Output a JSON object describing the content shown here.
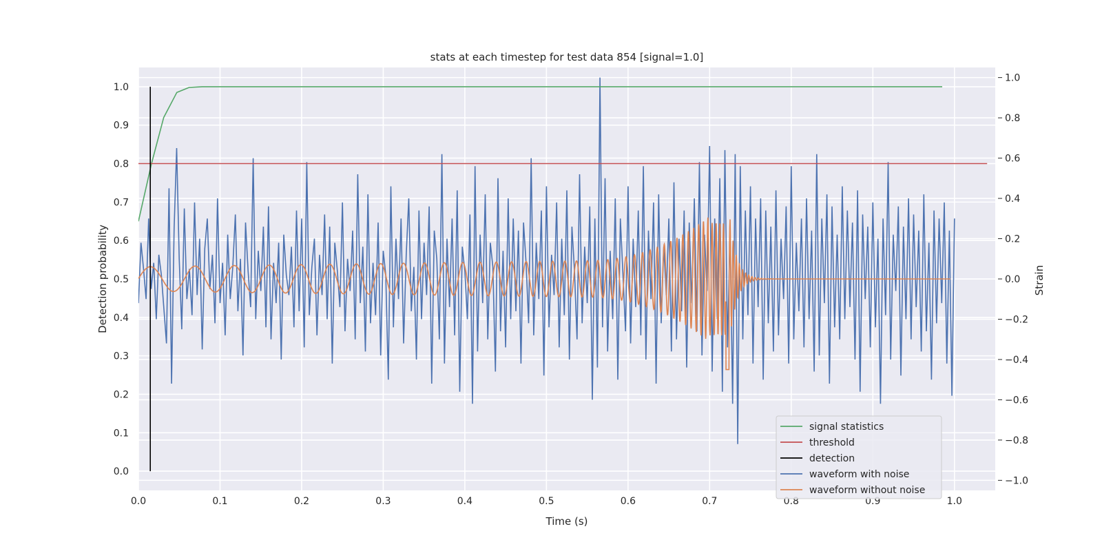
{
  "chart_data": {
    "type": "line",
    "title": "stats at each timestep for test data 854 [signal=1.0]",
    "xlabel": "Time (s)",
    "ylabel_left": "Detection probability",
    "ylabel_right": "Strain",
    "xlim": [
      0.0,
      1.05
    ],
    "ylim_left": [
      -0.05,
      1.05
    ],
    "ylim_right": [
      -1.05,
      1.05
    ],
    "x_ticks": [
      "0.0",
      "0.1",
      "0.2",
      "0.3",
      "0.4",
      "0.5",
      "0.6",
      "0.7",
      "0.8",
      "0.9",
      "1.0"
    ],
    "y_left_ticks": [
      "0.0",
      "0.1",
      "0.2",
      "0.3",
      "0.4",
      "0.5",
      "0.6",
      "0.7",
      "0.8",
      "0.9",
      "1.0"
    ],
    "y_right_ticks": [
      "−1.0",
      "−0.8",
      "−0.6",
      "−0.4",
      "−0.2",
      "0.0",
      "0.2",
      "0.4",
      "0.6",
      "0.8",
      "1.0"
    ],
    "grid": true,
    "legend_position": "lower-right",
    "series": [
      {
        "name": "signal statistics",
        "axis": "left",
        "color": "#55a868",
        "x": [
          0.0,
          0.016,
          0.031,
          0.047,
          0.062,
          0.078,
          0.1,
          0.2,
          0.3,
          0.4,
          0.5,
          0.6,
          0.7,
          0.8,
          0.9,
          0.985
        ],
        "y": [
          0.65,
          0.8,
          0.92,
          0.985,
          0.998,
          1.0,
          1.0,
          1.0,
          1.0,
          1.0,
          1.0,
          1.0,
          1.0,
          1.0,
          1.0,
          1.0
        ]
      },
      {
        "name": "threshold",
        "axis": "left",
        "color": "#c44e52",
        "x": [
          0.0,
          1.04
        ],
        "y": [
          0.8,
          0.8
        ]
      },
      {
        "name": "detection",
        "axis": "left",
        "color": "#000000",
        "x": [
          0.0145,
          0.0145
        ],
        "y": [
          0.0,
          1.0
        ]
      },
      {
        "name": "waveform with noise",
        "axis": "right",
        "color": "#4c72b0",
        "x_start": 0.0,
        "x_end": 1.0,
        "y": [
          -0.12,
          0.18,
          0.05,
          -0.1,
          0.3,
          -0.05,
          0.08,
          -0.2,
          0.12,
          0.02,
          -0.15,
          -0.32,
          0.45,
          -0.52,
          0.25,
          0.65,
          0.1,
          -0.25,
          0.35,
          -0.1,
          0.05,
          -0.18,
          0.38,
          -0.08,
          0.2,
          -0.35,
          0.15,
          0.3,
          -0.05,
          0.12,
          -0.22,
          0.4,
          -0.12,
          0.08,
          -0.28,
          0.22,
          -0.1,
          0.06,
          0.32,
          -0.16,
          0.1,
          -0.38,
          0.28,
          0.04,
          -0.14,
          0.6,
          -0.2,
          0.14,
          -0.06,
          0.26,
          -0.24,
          0.36,
          -0.3,
          0.08,
          -0.12,
          0.18,
          -0.4,
          0.22,
          0.02,
          -0.08,
          0.16,
          -0.24,
          0.34,
          -0.16,
          0.3,
          -0.34,
          0.58,
          -0.18,
          0.06,
          0.2,
          -0.28,
          0.12,
          -0.08,
          0.32,
          -0.2,
          0.26,
          -0.42,
          0.18,
          0.04,
          -0.14,
          0.38,
          -0.26,
          0.1,
          -0.06,
          0.24,
          -0.3,
          0.52,
          -0.12,
          0.16,
          -0.36,
          0.42,
          -0.22,
          0.08,
          -0.18,
          0.28,
          -0.38,
          0.14,
          0.02,
          -0.5,
          0.46,
          -0.24,
          0.2,
          -0.1,
          0.3,
          -0.32,
          0.12,
          0.4,
          -0.16,
          0.06,
          -0.4,
          0.34,
          -0.2,
          0.18,
          -0.08,
          0.36,
          -0.52,
          0.24,
          0.1,
          -0.3,
          0.62,
          -0.42,
          0.2,
          -0.14,
          0.3,
          -0.28,
          0.44,
          -0.56,
          0.16,
          0.04,
          -0.2,
          0.32,
          -0.62,
          0.56,
          -0.36,
          0.22,
          -0.12,
          0.42,
          -0.3,
          0.18,
          0.06,
          -0.46,
          0.5,
          -0.26,
          0.14,
          -0.34,
          0.4,
          -0.2,
          0.3,
          -0.16,
          0.24,
          -0.42,
          0.28,
          0.08,
          -0.22,
          0.6,
          -0.28,
          0.18,
          -0.1,
          0.34,
          -0.48,
          0.46,
          -0.24,
          0.12,
          -0.08,
          0.38,
          -0.34,
          0.2,
          -0.18,
          0.44,
          -0.4,
          0.26,
          0.04,
          -0.3,
          0.52,
          -0.22,
          0.16,
          -0.12,
          0.36,
          -0.6,
          0.3,
          -0.44,
          1.0,
          -0.24,
          0.5,
          -0.36,
          0.14,
          -0.2,
          0.4,
          -0.5,
          0.3,
          0.02,
          -0.26,
          0.46,
          -0.32,
          0.2,
          -0.14,
          0.34,
          -0.28,
          0.56,
          -0.4,
          0.24,
          -0.1,
          0.38,
          -0.52,
          0.42,
          -0.22,
          0.16,
          -0.08,
          0.3,
          -0.36,
          0.48,
          -0.3,
          0.2,
          -0.16,
          0.34,
          -0.44,
          0.28,
          -0.12,
          0.4,
          -0.26,
          0.58,
          -0.38,
          0.22,
          -0.06,
          0.66,
          -0.46,
          0.3,
          -0.2,
          0.5,
          -0.56,
          0.64,
          -0.34,
          0.24,
          -0.62,
          0.62,
          -0.82,
          0.56,
          -0.3,
          0.34,
          -0.18,
          0.46,
          -0.42,
          0.3,
          -0.14,
          0.4,
          -0.5,
          0.34,
          -0.22,
          0.26,
          -0.36,
          0.44,
          -0.28,
          0.2,
          -0.1,
          0.36,
          -0.42,
          0.56,
          -0.3,
          0.18,
          -0.16,
          0.3,
          -0.34,
          0.4,
          -0.2,
          0.24,
          -0.46,
          0.62,
          -0.38,
          0.3,
          -0.12,
          0.42,
          -0.52,
          0.36,
          -0.24,
          0.22,
          -0.3,
          0.46,
          -0.2,
          0.34,
          -0.14,
          0.28,
          -0.4,
          0.44,
          -0.56,
          0.32,
          -0.1,
          0.26,
          -0.34,
          0.38,
          -0.24,
          0.2,
          -0.62,
          0.3,
          -0.18,
          0.58,
          -0.4,
          0.22,
          -0.06,
          0.36,
          -0.48,
          0.26,
          -0.2,
          0.4,
          -0.3,
          0.32,
          -0.14,
          0.24,
          -0.36,
          0.42,
          -0.26,
          0.18,
          -0.5,
          0.34,
          -0.22,
          0.3,
          -0.12,
          0.38,
          -0.42,
          0.24,
          -0.58,
          0.3
        ]
      },
      {
        "name": "waveform without noise",
        "axis": "right",
        "color": "#dd8452",
        "description_only": "chirp"
      }
    ]
  }
}
